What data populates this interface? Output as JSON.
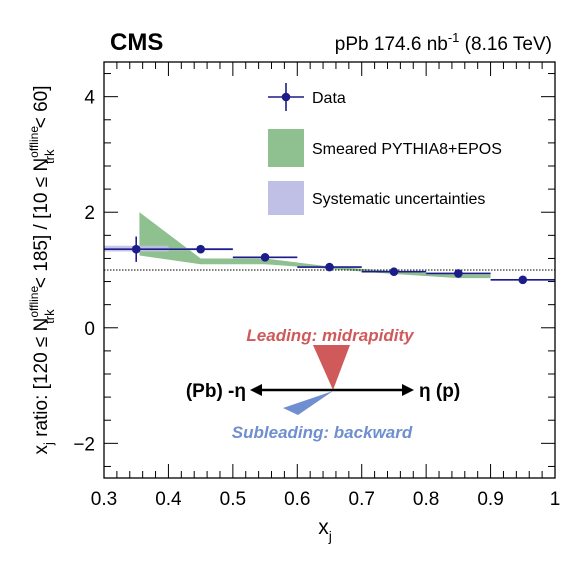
{
  "header": {
    "experiment": "CMS",
    "lumi_prefix": "pPb 174.6 nb",
    "lumi_exp": "-1",
    "lumi_suffix": " (8.16 TeV)"
  },
  "chart_data": {
    "type": "scatter",
    "xlabel_main": "x",
    "xlabel_sub": "j",
    "ylabel": {
      "p1_main": "x",
      "p1_sub": "j",
      "p2": " ratio: [120 ≤ N",
      "p3_sup": "offline",
      "p3_sub": "trk",
      "p4": " < 185] / [10 ≤ N",
      "p5_sup": "offline",
      "p5_sub": "trk",
      "p6": " < 60]"
    },
    "xlim": [
      0.3,
      1.0
    ],
    "ylim": [
      -2.6,
      4.6
    ],
    "xticks": [
      0.3,
      0.4,
      0.5,
      0.6,
      0.7,
      0.8,
      0.9,
      1.0
    ],
    "xtick_labels": [
      "0.3",
      "0.4",
      "0.5",
      "0.6",
      "0.7",
      "0.8",
      "0.9",
      "1"
    ],
    "yticks": [
      -2,
      0,
      2,
      4
    ],
    "ytick_labels": [
      "−2",
      "0",
      "2",
      "4"
    ],
    "reference_line_y": 1.0,
    "series": [
      {
        "name": "Data",
        "color": "#1c1c8a",
        "points": [
          {
            "x": 0.35,
            "y": 1.36,
            "xlow": 0.3,
            "xhigh": 0.4,
            "err": 0.22
          },
          {
            "x": 0.45,
            "y": 1.36,
            "xlow": 0.4,
            "xhigh": 0.5,
            "err": 0.05
          },
          {
            "x": 0.55,
            "y": 1.22,
            "xlow": 0.5,
            "xhigh": 0.6,
            "err": 0.04
          },
          {
            "x": 0.65,
            "y": 1.05,
            "xlow": 0.6,
            "xhigh": 0.7,
            "err": 0.03
          },
          {
            "x": 0.75,
            "y": 0.97,
            "xlow": 0.7,
            "xhigh": 0.8,
            "err": 0.03
          },
          {
            "x": 0.85,
            "y": 0.94,
            "xlow": 0.8,
            "xhigh": 0.9,
            "err": 0.03
          },
          {
            "x": 0.95,
            "y": 0.83,
            "xlow": 0.9,
            "xhigh": 1.0,
            "err": 0.03
          }
        ]
      },
      {
        "name": "Smeared PYTHIA8+EPOS",
        "color": "#8fc08f",
        "band": {
          "x": [
            0.355,
            0.45,
            0.55,
            0.65,
            0.75,
            0.85,
            0.9
          ],
          "low": [
            1.25,
            1.1,
            1.1,
            1.02,
            0.93,
            0.86,
            0.86
          ],
          "high": [
            2.0,
            1.2,
            1.2,
            1.06,
            0.98,
            0.92,
            0.92
          ]
        }
      },
      {
        "name": "Systematic uncertainties",
        "color": "#c0c0e6",
        "bins": [
          {
            "xlow": 0.3,
            "xhigh": 0.4,
            "low": 1.32,
            "high": 1.42
          },
          {
            "xlow": 0.4,
            "xhigh": 0.5,
            "low": 1.34,
            "high": 1.38
          },
          {
            "xlow": 0.5,
            "xhigh": 0.6,
            "low": 1.205,
            "high": 1.235
          },
          {
            "xlow": 0.6,
            "xhigh": 0.7,
            "low": 1.035,
            "high": 1.065
          },
          {
            "xlow": 0.7,
            "xhigh": 0.8,
            "low": 0.955,
            "high": 0.985
          },
          {
            "xlow": 0.8,
            "xhigh": 0.9,
            "low": 0.925,
            "high": 0.955
          },
          {
            "xlow": 0.9,
            "xhigh": 1.0,
            "low": 0.815,
            "high": 0.845
          }
        ]
      }
    ],
    "legend": {
      "placement": "top-center",
      "entries": [
        "Data",
        "Smeared PYTHIA8+EPOS",
        "Systematic uncertainties"
      ]
    },
    "annotations": {
      "leading_label": "Leading: midrapidity",
      "leading_color": "#d05a5a",
      "subleading_label": "Subleading: backward",
      "subleading_color": "#6f8fd0",
      "left_label": "(Pb) -η",
      "right_label": "η (p)"
    }
  }
}
